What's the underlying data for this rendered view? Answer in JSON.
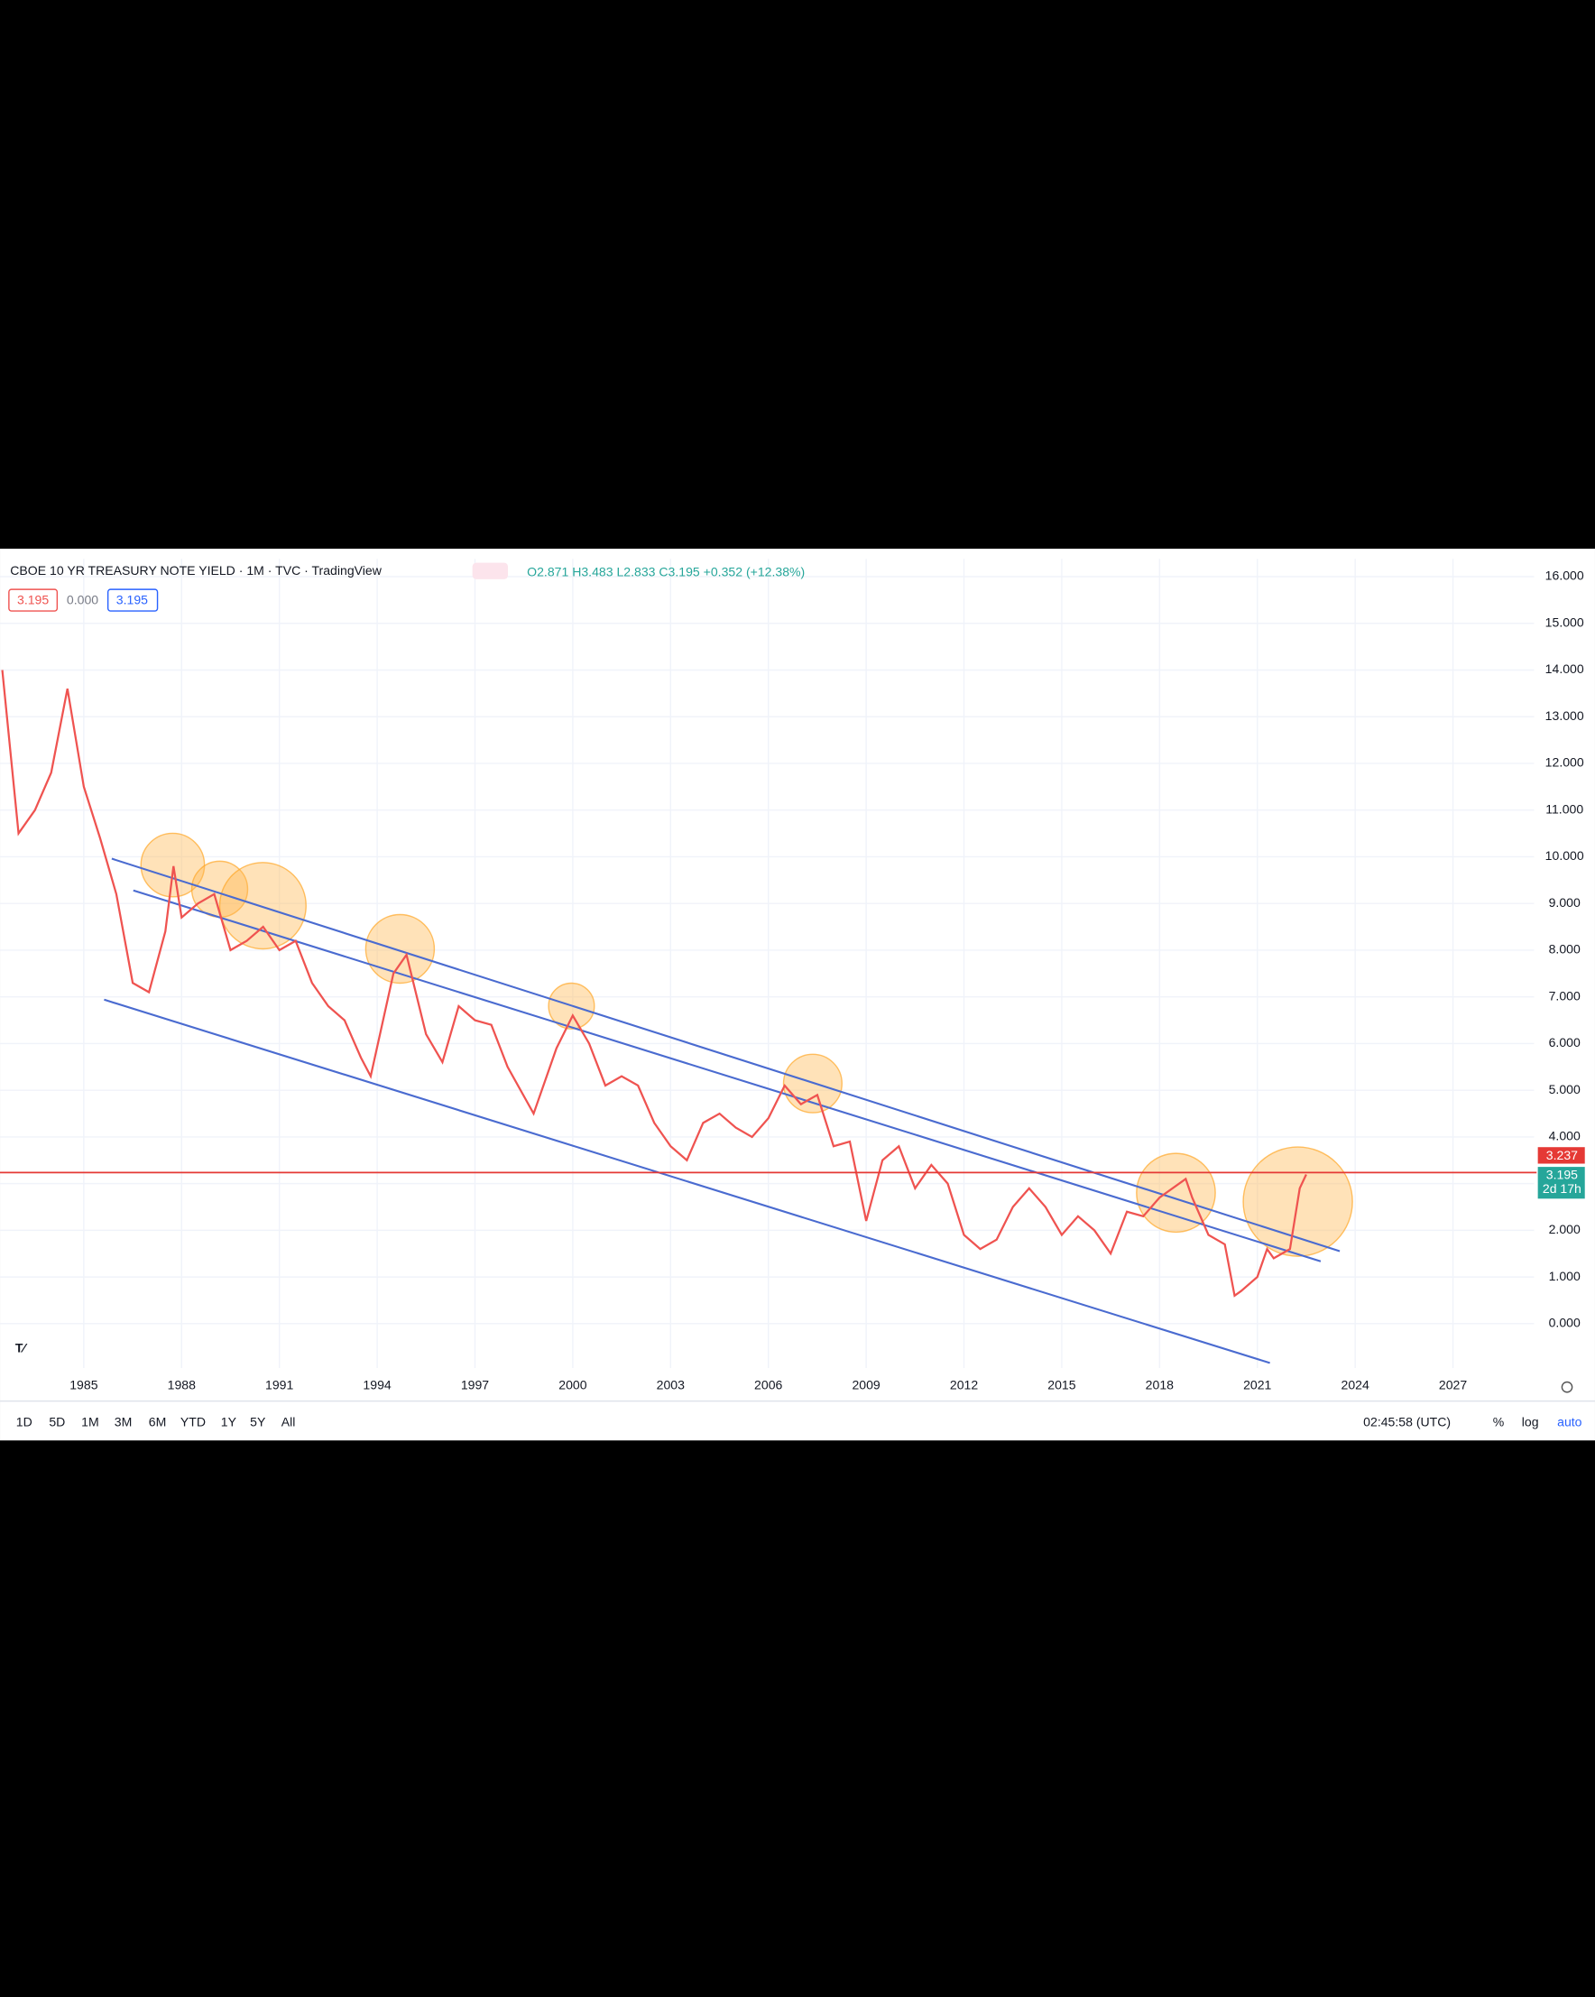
{
  "chart_data": {
    "type": "line",
    "title": "CBOE 10 YR TREASURY NOTE YIELD · 1M · TVC · TradingView",
    "ohlc": "O2.871  H3.483  L2.833  C3.195  +0.352 (+12.38%)",
    "color": "#ef5350",
    "grid": true,
    "x": [
      1982.5,
      1983.0,
      1983.5,
      1984.0,
      1984.5,
      1985.0,
      1985.5,
      1986.0,
      1986.5,
      1987.0,
      1987.5,
      1987.75,
      1988.0,
      1988.5,
      1989.0,
      1989.5,
      1990.0,
      1990.5,
      1991.0,
      1991.5,
      1992.0,
      1992.5,
      1993.0,
      1993.5,
      1993.8,
      1994.5,
      1994.9,
      1995.5,
      1996.0,
      1996.5,
      1997.0,
      1997.5,
      1998.0,
      1998.8,
      1999.5,
      2000.0,
      2000.5,
      2001.0,
      2001.5,
      2002.0,
      2002.5,
      2003.0,
      2003.5,
      2004.0,
      2004.5,
      2005.0,
      2005.5,
      2006.0,
      2006.5,
      2007.0,
      2007.5,
      2008.0,
      2008.5,
      2009.0,
      2009.5,
      2010.0,
      2010.5,
      2011.0,
      2011.5,
      2012.0,
      2012.5,
      2013.0,
      2013.5,
      2014.0,
      2014.5,
      2015.0,
      2015.5,
      2016.0,
      2016.5,
      2017.0,
      2017.5,
      2018.0,
      2018.8,
      2019.0,
      2019.5,
      2020.0,
      2020.3,
      2020.5,
      2021.0,
      2021.3,
      2021.5,
      2022.0,
      2022.3,
      2022.5
    ],
    "values": [
      14.0,
      10.5,
      11.0,
      11.8,
      13.6,
      11.5,
      10.4,
      9.2,
      7.3,
      7.1,
      8.4,
      9.8,
      8.7,
      9.0,
      9.2,
      8.0,
      8.2,
      8.5,
      8.0,
      8.2,
      7.3,
      6.8,
      6.5,
      5.7,
      5.3,
      7.5,
      7.9,
      6.2,
      5.6,
      6.8,
      6.5,
      6.4,
      5.5,
      4.5,
      5.9,
      6.6,
      6.0,
      5.1,
      5.3,
      5.1,
      4.3,
      3.8,
      3.5,
      4.3,
      4.5,
      4.2,
      4.0,
      4.4,
      5.1,
      4.7,
      4.9,
      3.8,
      3.9,
      2.2,
      3.5,
      3.8,
      2.9,
      3.4,
      3.0,
      1.9,
      1.6,
      1.8,
      2.5,
      2.9,
      2.5,
      1.9,
      2.3,
      2.0,
      1.5,
      2.4,
      2.3,
      2.7,
      3.1,
      2.7,
      1.9,
      1.7,
      0.6,
      0.7,
      1.0,
      1.6,
      1.4,
      1.6,
      2.9,
      3.195
    ],
    "xlim": [
      1982.43,
      2029.37
    ],
    "xticks": [
      1985,
      1988,
      1991,
      1994,
      1997,
      2000,
      2003,
      2006,
      2009,
      2012,
      2015,
      2018,
      2021,
      2024,
      2027
    ],
    "ylim": [
      -0.95,
      16.38
    ],
    "yticks": [
      {
        "value": 0,
        "label": "0.000"
      },
      {
        "value": 1,
        "label": "1.000"
      },
      {
        "value": 2,
        "label": "2.000"
      },
      {
        "value": 3,
        "label": "3.000"
      },
      {
        "value": 4,
        "label": "4.000"
      },
      {
        "value": 5,
        "label": "5.000"
      },
      {
        "value": 6,
        "label": "6.000"
      },
      {
        "value": 7,
        "label": "7.000"
      },
      {
        "value": 8,
        "label": "8.000"
      },
      {
        "value": 9,
        "label": "9.000"
      },
      {
        "value": 10,
        "label": "10.000"
      },
      {
        "value": 11,
        "label": "11.000"
      },
      {
        "value": 12,
        "label": "12.000"
      },
      {
        "value": 13,
        "label": "13.000"
      },
      {
        "value": 14,
        "label": "14.000"
      },
      {
        "value": 15,
        "label": "15.000"
      },
      {
        "value": 16,
        "label": "16.000"
      }
    ],
    "horizontal_line": 3.237,
    "last_price": 3.195,
    "countdown": "2d 17h"
  },
  "ui": {
    "inputs": [
      "3.195",
      "0.000",
      "3.195"
    ],
    "ranges": [
      "1D",
      "5D",
      "1M",
      "3M",
      "6M",
      "YTD",
      "1Y",
      "5Y",
      "All"
    ],
    "time": "02:45:58 (UTC)",
    "scale": [
      "%",
      "log",
      "auto"
    ]
  }
}
